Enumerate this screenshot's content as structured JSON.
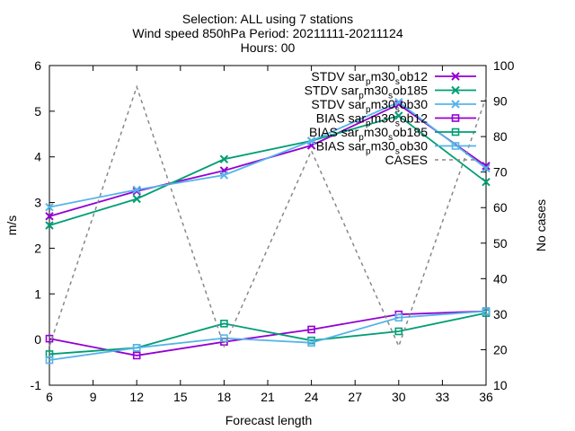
{
  "chart_data": {
    "type": "line",
    "title_lines": [
      "Selection: ALL using      7 stations",
      "Wind speed 850hPa   Period: 20211111-20211124",
      "Hours: 00"
    ],
    "xlabel": "Forecast length",
    "ylabel": "m/s",
    "y2label": "No cases",
    "x": [
      6,
      12,
      18,
      24,
      30,
      36
    ],
    "xticks": [
      6,
      9,
      12,
      15,
      18,
      21,
      24,
      27,
      30,
      33,
      36
    ],
    "xlim": [
      6,
      36
    ],
    "ylim": [
      -1,
      6
    ],
    "yticks": [
      -1,
      0,
      1,
      2,
      3,
      4,
      5,
      6
    ],
    "y2lim": [
      10,
      100
    ],
    "y2ticks": [
      10,
      20,
      30,
      40,
      50,
      60,
      70,
      80,
      90,
      100
    ],
    "grid": false,
    "legend_position": "top-right",
    "series": [
      {
        "name": "STDV sar_pm30_sob12",
        "label": {
          "a": "STDV sar",
          "s1": "p",
          "b": "m30",
          "s2": "s",
          "c": "ob12"
        },
        "axis": "y",
        "color": "#9400d3",
        "marker": "x",
        "values": [
          2.7,
          3.25,
          3.7,
          4.25,
          5.15,
          3.8
        ]
      },
      {
        "name": "STDV sar_pm30_sob185",
        "label": {
          "a": "STDV sar",
          "s1": "p",
          "b": "m30",
          "s2": "s",
          "c": "ob185"
        },
        "axis": "y",
        "color": "#009e73",
        "marker": "x",
        "values": [
          2.5,
          3.08,
          3.95,
          4.35,
          4.9,
          3.45
        ]
      },
      {
        "name": "STDV sar_pm30_sob30",
        "label": {
          "a": "STDV sar",
          "s1": "p",
          "b": "m30",
          "s2": "s",
          "c": "ob30"
        },
        "axis": "y",
        "color": "#56b4e9",
        "marker": "x",
        "values": [
          2.9,
          3.28,
          3.6,
          4.35,
          5.2,
          3.75
        ]
      },
      {
        "name": "BIAS sar_pm30_sob12",
        "label": {
          "a": "BIAS sar",
          "s1": "p",
          "b": "m30",
          "s2": "s",
          "c": "ob12"
        },
        "axis": "y",
        "color": "#9400d3",
        "marker": "square",
        "values": [
          0.02,
          -0.35,
          -0.05,
          0.22,
          0.55,
          0.62
        ]
      },
      {
        "name": "BIAS sar_pm30_sob185",
        "label": {
          "a": "BIAS sar",
          "s1": "p",
          "b": "m30",
          "s2": "s",
          "c": "ob185"
        },
        "axis": "y",
        "color": "#009e73",
        "marker": "square",
        "values": [
          -0.32,
          -0.18,
          0.35,
          -0.02,
          0.18,
          0.58
        ]
      },
      {
        "name": "BIAS sar_pm30_sob30",
        "label": {
          "a": "BIAS sar",
          "s1": "p",
          "b": "m30",
          "s2": "s",
          "c": "ob30"
        },
        "axis": "y",
        "color": "#56b4e9",
        "marker": "square",
        "values": [
          -0.45,
          -0.18,
          0.03,
          -0.07,
          0.48,
          0.62
        ]
      },
      {
        "name": "CASES",
        "label": {
          "a": "CASES",
          "s1": "",
          "b": "",
          "s2": "",
          "c": ""
        },
        "axis": "y2",
        "color": "#888888",
        "marker": "none",
        "dashed": true,
        "values": [
          21,
          94,
          21,
          76,
          21,
          91
        ]
      }
    ]
  }
}
